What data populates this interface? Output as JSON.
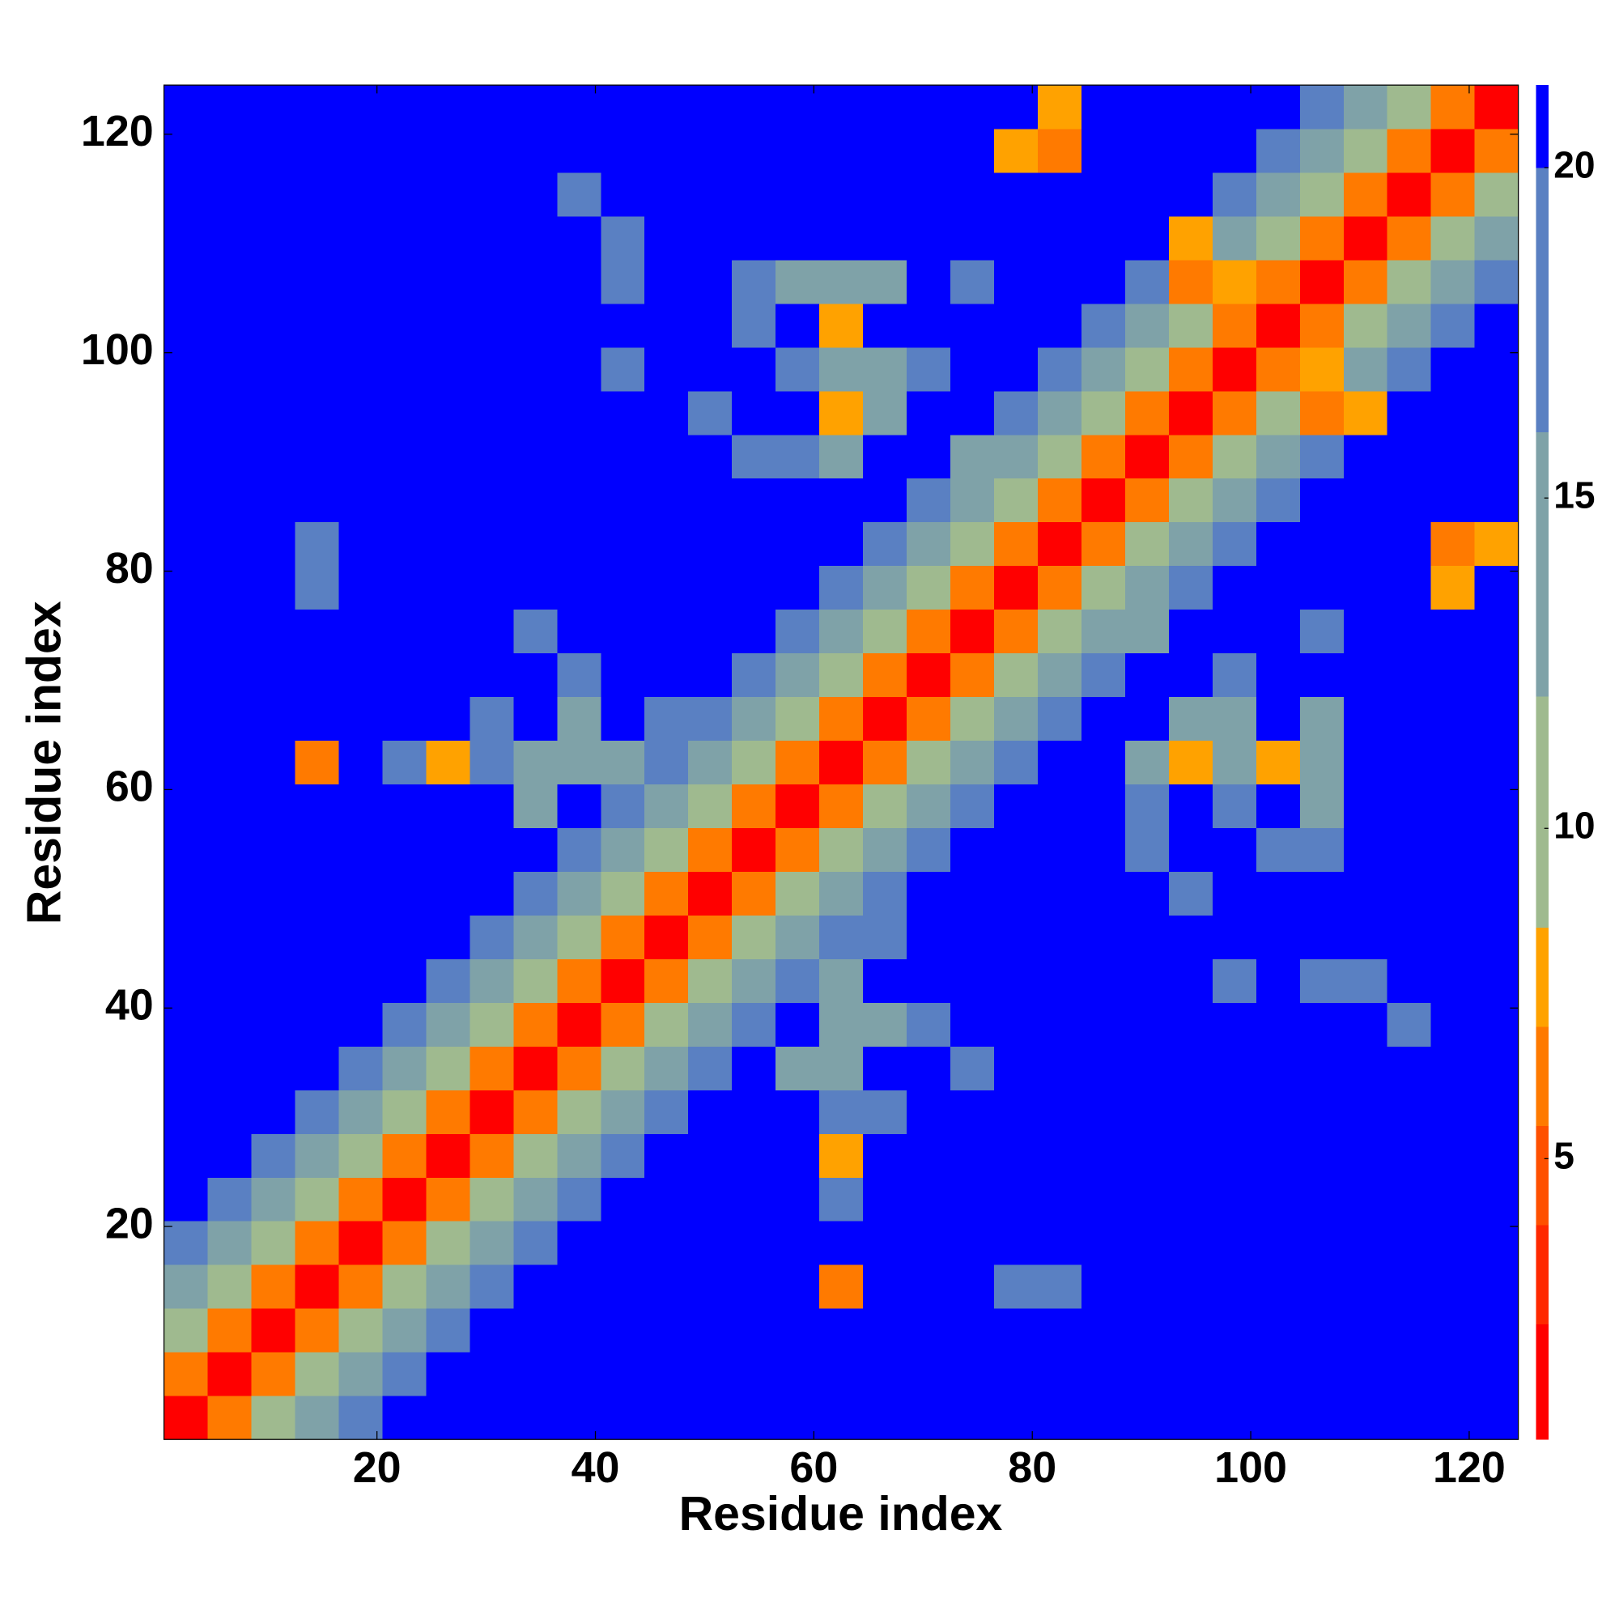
{
  "chart_data": {
    "type": "heatmap",
    "xlabel": "Residue index",
    "ylabel": "Residue index",
    "x": [
      2.5,
      6.5,
      10.5,
      14.5,
      18.5,
      22.5,
      26.5,
      30.5,
      34.5,
      38.5,
      42.5,
      46.5,
      50.5,
      54.5,
      58.5,
      62.5,
      66.5,
      70.5,
      74.5,
      78.5,
      82.5,
      86.5,
      90.5,
      94.5,
      98.5,
      102.5,
      106.5,
      110.5,
      114.5,
      118.5,
      122.5
    ],
    "y": [
      2.5,
      6.5,
      10.5,
      14.5,
      18.5,
      22.5,
      26.5,
      30.5,
      34.5,
      38.5,
      42.5,
      46.5,
      50.5,
      54.5,
      58.5,
      62.5,
      66.5,
      70.5,
      74.5,
      78.5,
      82.5,
      86.5,
      90.5,
      94.5,
      98.5,
      102.5,
      106.5,
      110.5,
      114.5,
      118.5,
      122.5
    ],
    "xlim": [
      0.5,
      124.5
    ],
    "ylim": [
      0.5,
      124.5
    ],
    "xticks": [
      20,
      40,
      60,
      80,
      100,
      120
    ],
    "yticks": [
      20,
      40,
      60,
      80,
      100,
      120
    ],
    "colorbar": {
      "levels": [
        0.75,
        2.5,
        4,
        5.5,
        7,
        8.5,
        12,
        16,
        20,
        21.25
      ],
      "colors": [
        "#ff0000",
        "#ff2800",
        "#ff5000",
        "#ff7a00",
        "#ffa200",
        "#9fba8f",
        "#7fa2a8",
        "#5a80c2",
        "#0000ff"
      ],
      "ticks": [
        5,
        10,
        15,
        20
      ]
    },
    "z": [
      [
        2,
        6,
        11,
        15,
        18,
        21,
        21,
        21,
        21,
        21,
        21,
        21,
        21,
        21,
        21,
        21,
        21,
        21,
        21,
        21,
        21,
        21,
        21,
        21,
        21,
        21,
        21,
        21,
        21,
        21,
        21
      ],
      [
        6,
        2,
        6,
        11,
        15,
        18,
        21,
        21,
        21,
        21,
        21,
        21,
        21,
        21,
        21,
        21,
        21,
        21,
        21,
        21,
        21,
        21,
        21,
        21,
        21,
        21,
        21,
        21,
        21,
        21,
        21
      ],
      [
        11,
        6,
        2,
        6,
        11,
        15,
        18,
        21,
        21,
        21,
        21,
        21,
        21,
        21,
        21,
        21,
        21,
        21,
        21,
        21,
        21,
        21,
        21,
        21,
        21,
        21,
        21,
        21,
        21,
        21,
        21
      ],
      [
        15,
        11,
        6,
        2,
        6,
        11,
        15,
        18,
        21,
        21,
        21,
        21,
        21,
        21,
        21,
        6,
        21,
        21,
        21,
        18,
        18,
        21,
        21,
        21,
        21,
        21,
        21,
        21,
        21,
        21,
        21
      ],
      [
        18,
        15,
        11,
        6,
        2,
        6,
        11,
        15,
        18,
        21,
        21,
        21,
        21,
        21,
        21,
        21,
        21,
        21,
        21,
        21,
        21,
        21,
        21,
        21,
        21,
        21,
        21,
        21,
        21,
        21,
        21
      ],
      [
        21,
        18,
        15,
        11,
        6,
        2,
        6,
        11,
        15,
        18,
        21,
        21,
        21,
        21,
        21,
        17,
        21,
        21,
        21,
        21,
        21,
        21,
        21,
        21,
        21,
        21,
        21,
        21,
        21,
        21,
        21
      ],
      [
        21,
        21,
        18,
        15,
        11,
        6,
        2,
        6,
        11,
        15,
        18,
        21,
        21,
        21,
        21,
        7,
        21,
        21,
        21,
        21,
        21,
        21,
        21,
        21,
        21,
        21,
        21,
        21,
        21,
        21,
        21
      ],
      [
        21,
        21,
        21,
        18,
        15,
        11,
        6,
        2,
        6,
        11,
        15,
        18,
        21,
        21,
        21,
        16,
        17,
        21,
        21,
        21,
        21,
        21,
        21,
        21,
        21,
        21,
        21,
        21,
        21,
        21,
        21
      ],
      [
        21,
        21,
        21,
        21,
        18,
        15,
        11,
        6,
        2,
        6,
        11,
        15,
        18,
        21,
        14,
        13,
        21,
        21,
        17,
        21,
        21,
        21,
        21,
        21,
        21,
        21,
        21,
        21,
        21,
        21,
        21
      ],
      [
        21,
        21,
        21,
        21,
        21,
        18,
        15,
        11,
        6,
        2,
        6,
        11,
        15,
        18,
        21,
        12,
        14,
        16,
        21,
        21,
        21,
        21,
        21,
        21,
        21,
        21,
        21,
        21,
        19,
        21,
        21
      ],
      [
        21,
        21,
        21,
        21,
        21,
        21,
        18,
        15,
        11,
        6,
        2,
        6,
        11,
        15,
        18,
        13,
        21,
        21,
        21,
        21,
        21,
        21,
        21,
        21,
        19,
        21,
        19,
        18,
        21,
        21,
        21
      ],
      [
        21,
        21,
        21,
        21,
        21,
        21,
        21,
        18,
        15,
        11,
        6,
        2,
        6,
        11,
        12,
        18,
        16,
        21,
        21,
        21,
        21,
        21,
        21,
        21,
        21,
        21,
        21,
        21,
        21,
        21,
        21
      ],
      [
        21,
        21,
        21,
        21,
        21,
        21,
        21,
        21,
        18,
        15,
        11,
        6,
        2,
        6,
        11,
        15,
        18,
        21,
        21,
        21,
        21,
        21,
        21,
        17,
        21,
        21,
        21,
        21,
        21,
        21,
        21
      ],
      [
        21,
        21,
        21,
        21,
        21,
        21,
        21,
        21,
        21,
        18,
        15,
        11,
        6,
        2,
        6,
        11,
        15,
        18,
        21,
        21,
        21,
        21,
        16,
        21,
        21,
        16,
        17,
        21,
        21,
        21,
        21
      ],
      [
        21,
        21,
        21,
        21,
        21,
        21,
        21,
        21,
        14,
        21,
        18,
        12,
        11,
        6,
        2,
        6,
        11,
        15,
        18,
        21,
        21,
        21,
        16,
        21,
        16,
        21,
        15,
        21,
        21,
        21,
        21
      ],
      [
        21,
        21,
        21,
        6,
        21,
        17,
        7,
        16,
        13,
        12,
        13,
        18,
        15,
        11,
        6,
        2,
        6,
        11,
        15,
        18,
        21,
        21,
        13,
        7,
        14,
        8,
        13,
        21,
        21,
        21,
        21
      ],
      [
        21,
        21,
        21,
        21,
        21,
        21,
        21,
        17,
        21,
        14,
        21,
        16,
        18,
        15,
        11,
        6,
        2,
        6,
        11,
        15,
        18,
        21,
        21,
        13,
        15,
        21,
        15,
        21,
        21,
        21,
        21
      ],
      [
        21,
        21,
        21,
        21,
        21,
        21,
        21,
        21,
        21,
        16,
        21,
        21,
        21,
        18,
        15,
        11,
        6,
        2,
        6,
        11,
        15,
        18,
        21,
        21,
        16,
        21,
        21,
        21,
        21,
        21,
        21
      ],
      [
        21,
        21,
        21,
        21,
        21,
        21,
        21,
        21,
        17,
        21,
        21,
        21,
        21,
        21,
        18,
        15,
        11,
        6,
        2,
        6,
        11,
        15,
        15,
        21,
        21,
        21,
        17,
        21,
        21,
        21,
        21
      ],
      [
        21,
        21,
        21,
        18,
        21,
        21,
        21,
        21,
        21,
        21,
        21,
        21,
        21,
        21,
        21,
        18,
        15,
        11,
        6,
        2,
        6,
        11,
        15,
        18,
        21,
        21,
        21,
        21,
        21,
        7,
        21
      ],
      [
        21,
        21,
        21,
        18,
        21,
        21,
        21,
        21,
        21,
        21,
        21,
        21,
        21,
        21,
        21,
        21,
        18,
        15,
        11,
        6,
        2,
        6,
        11,
        15,
        18,
        21,
        21,
        21,
        21,
        6,
        7
      ],
      [
        21,
        21,
        21,
        21,
        21,
        21,
        21,
        21,
        21,
        21,
        21,
        21,
        21,
        21,
        21,
        21,
        21,
        18,
        15,
        11,
        6,
        2,
        6,
        11,
        15,
        18,
        21,
        21,
        21,
        21,
        21
      ],
      [
        21,
        21,
        21,
        21,
        21,
        21,
        21,
        21,
        21,
        21,
        21,
        21,
        21,
        16,
        16,
        13,
        21,
        21,
        15,
        15,
        11,
        6,
        2,
        6,
        11,
        15,
        18,
        21,
        21,
        21,
        21
      ],
      [
        21,
        21,
        21,
        21,
        21,
        21,
        21,
        21,
        21,
        21,
        21,
        21,
        17,
        21,
        21,
        7,
        13,
        21,
        21,
        18,
        15,
        11,
        6,
        2,
        6,
        11,
        6,
        8,
        21,
        21,
        21
      ],
      [
        21,
        21,
        21,
        21,
        21,
        21,
        21,
        21,
        21,
        21,
        19,
        21,
        21,
        21,
        16,
        14,
        15,
        16,
        21,
        21,
        18,
        15,
        11,
        6,
        2,
        6,
        7,
        15,
        18,
        21,
        21
      ],
      [
        21,
        21,
        21,
        21,
        21,
        21,
        21,
        21,
        21,
        21,
        21,
        21,
        21,
        16,
        21,
        8,
        21,
        21,
        21,
        21,
        21,
        18,
        15,
        11,
        6,
        2,
        6,
        11,
        15,
        18,
        21
      ],
      [
        21,
        21,
        21,
        21,
        21,
        21,
        21,
        21,
        21,
        21,
        19,
        21,
        21,
        17,
        15,
        13,
        15,
        21,
        17,
        21,
        21,
        21,
        18,
        6,
        7,
        6,
        2,
        6,
        11,
        15,
        18
      ],
      [
        21,
        21,
        21,
        21,
        21,
        21,
        21,
        21,
        21,
        21,
        18,
        21,
        21,
        21,
        21,
        21,
        21,
        21,
        21,
        21,
        21,
        21,
        21,
        8,
        15,
        11,
        6,
        2,
        6,
        11,
        15
      ],
      [
        21,
        21,
        21,
        21,
        21,
        21,
        21,
        21,
        21,
        19,
        21,
        21,
        21,
        21,
        21,
        21,
        21,
        21,
        21,
        21,
        21,
        21,
        21,
        21,
        18,
        15,
        11,
        6,
        2,
        6,
        11
      ],
      [
        21,
        21,
        21,
        21,
        21,
        21,
        21,
        21,
        21,
        21,
        21,
        21,
        21,
        21,
        21,
        21,
        21,
        21,
        21,
        7,
        6,
        21,
        21,
        21,
        21,
        18,
        15,
        11,
        6,
        2,
        6
      ],
      [
        21,
        21,
        21,
        21,
        21,
        21,
        21,
        21,
        21,
        21,
        21,
        21,
        21,
        21,
        21,
        21,
        21,
        21,
        21,
        21,
        7,
        21,
        21,
        21,
        21,
        21,
        18,
        15,
        11,
        6,
        2
      ]
    ]
  }
}
